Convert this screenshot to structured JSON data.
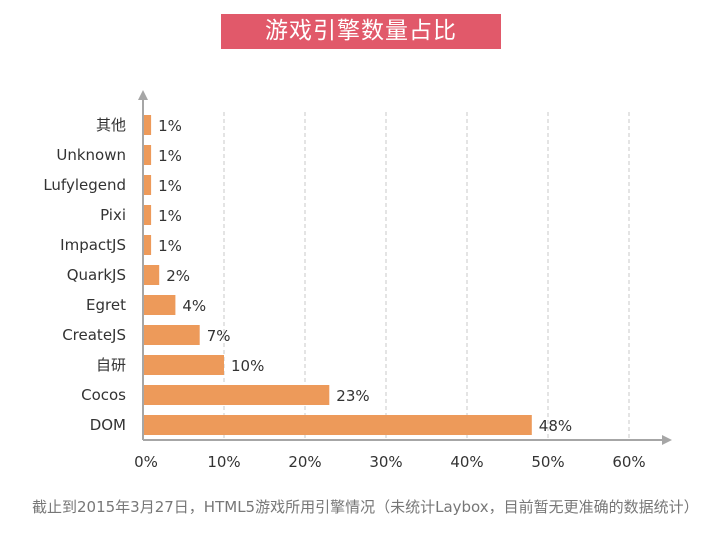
{
  "title": "游戏引擎数量占比",
  "footnote": "截止到2015年3月27日，HTML5游戏所用引擎情况（未统计Laybox，目前暂无更准确的数据统计）",
  "colors": {
    "title_bg": "#e1596a",
    "bar": "#ed9a5a",
    "axis": "#a6a6a6",
    "grid": "#c8c8c8"
  },
  "chart_data": {
    "type": "bar",
    "orientation": "horizontal",
    "categories": [
      "其他",
      "Unknown",
      "Lufylegend",
      "Pixi",
      "ImpactJS",
      "QuarkJS",
      "Egret",
      "CreateJS",
      "自研",
      "Cocos",
      "DOM"
    ],
    "values": [
      1,
      1,
      1,
      1,
      1,
      2,
      4,
      7,
      10,
      23,
      48
    ],
    "value_labels": [
      "1%",
      "1%",
      "1%",
      "1%",
      "1%",
      "2%",
      "4%",
      "7%",
      "10%",
      "23%",
      "48%"
    ],
    "xlim": [
      0,
      60
    ],
    "xticks": [
      0,
      10,
      20,
      30,
      40,
      50,
      60
    ],
    "xtick_labels": [
      "0%",
      "10%",
      "20%",
      "30%",
      "40%",
      "50%",
      "60%"
    ],
    "grid": "vertical dashed",
    "legend": "none"
  }
}
